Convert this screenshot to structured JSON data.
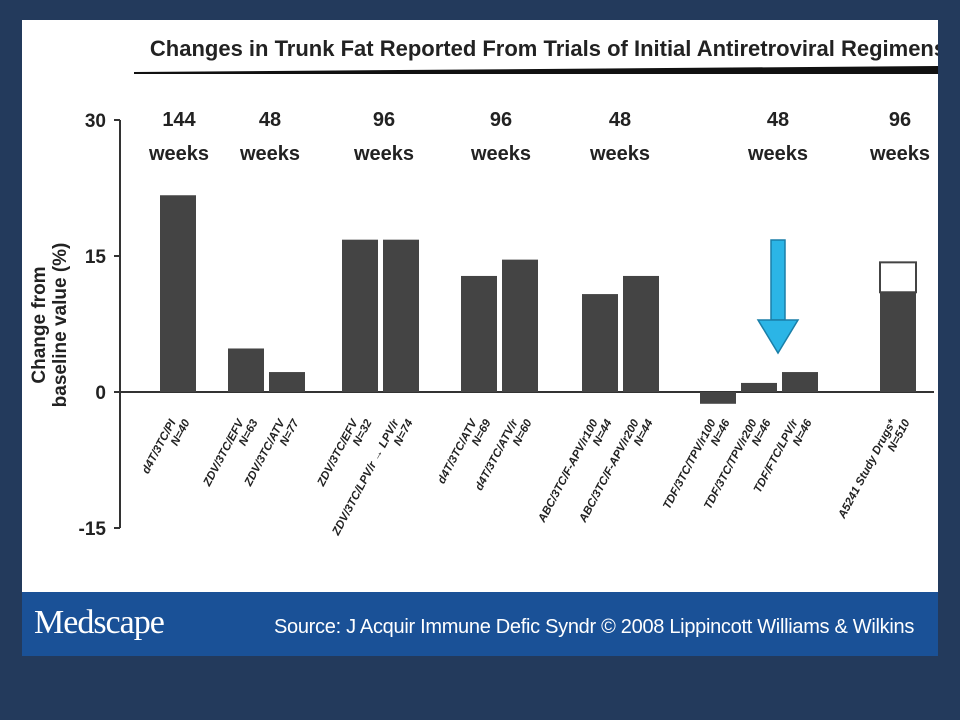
{
  "footer": {
    "logo": "Medscape",
    "source": "Source: J Acquir Immune Defic Syndr © 2008 Lippincott Williams & Wilkins"
  },
  "colors": {
    "background": "#233a5c",
    "panel": "#ffffff",
    "footer": "#1a5197",
    "bar": "#444444",
    "arrow": "#2bb5e6"
  },
  "annotations": {
    "arrow_icon": "down-arrow-icon",
    "arrow_target": "TDF/3TC/TPV/r200 N=46"
  },
  "chart_data": {
    "type": "bar",
    "title": "Changes in Trunk Fat Reported From Trials of Initial Antiretroviral Regimens",
    "ylabel": "Change from baseline value (%)",
    "xlabel": "",
    "ylim": [
      -15,
      30
    ],
    "yticks": [
      "30",
      "15",
      "0",
      "-15"
    ],
    "ytick_values": [
      30,
      15,
      0,
      -15
    ],
    "grid": false,
    "groups": [
      {
        "duration_number": "144",
        "duration_unit": "weeks",
        "bars": [
          {
            "label": "d4T/3TC/PI",
            "n": "N=40",
            "value": 21.7
          }
        ]
      },
      {
        "duration_number": "48",
        "duration_unit": "weeks",
        "bars": [
          {
            "label": "ZDV/3TC/EFV",
            "n": "N=63",
            "value": 4.8
          },
          {
            "label": "ZDV/3TC/ATV",
            "n": "N=77",
            "value": 2.2
          }
        ]
      },
      {
        "duration_number": "96",
        "duration_unit": "weeks",
        "bars": [
          {
            "label": "ZDV/3TC/EFV",
            "n": "N=32",
            "value": 16.8
          },
          {
            "label": "ZDV/3TC/LPV/r → LPV/r",
            "n": "N=74",
            "value": 16.8
          }
        ]
      },
      {
        "duration_number": "96",
        "duration_unit": "weeks",
        "bars": [
          {
            "label": "d4T/3TC/ATV",
            "n": "N=69",
            "value": 12.8
          },
          {
            "label": "d4T/3TC/ATV/r",
            "n": "N=60",
            "value": 14.6
          }
        ]
      },
      {
        "duration_number": "48",
        "duration_unit": "weeks",
        "bars": [
          {
            "label": "ABC/3TC/F-APV/r100",
            "n": "N=44",
            "value": 10.8
          },
          {
            "label": "ABC/3TC/F-APV/r200",
            "n": "N=44",
            "value": 12.8
          }
        ]
      },
      {
        "duration_number": "48",
        "duration_unit": "weeks",
        "bars": [
          {
            "label": "TDF/3TC/TPV/r100",
            "n": "N=46",
            "value": -1.3
          },
          {
            "label": "TDF/3TC/TPV/r200",
            "n": "N=46",
            "value": 1.0
          },
          {
            "label": "TDF/FTC/LPV/r",
            "n": "N=46",
            "value": 2.2
          }
        ]
      },
      {
        "duration_number": "96",
        "duration_unit": "weeks",
        "bars": [
          {
            "label": "A5241 Study Drugs*",
            "n": "N=510",
            "value": 11.0,
            "stacked_extra": 3.3
          }
        ]
      }
    ]
  }
}
